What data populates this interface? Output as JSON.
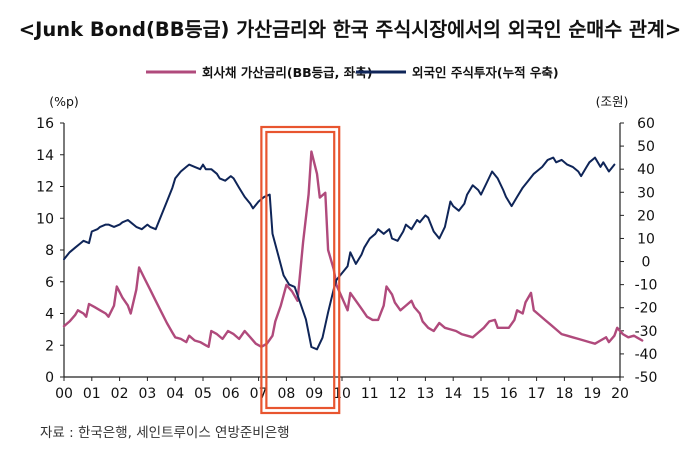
{
  "chart_data": {
    "type": "line",
    "title": "<Junk Bond(BB등급) 가산금리와 한국 주식시장에서의 외국인 순매수 관계>",
    "source": "자료 : 한국은행, 세인트루이스 연방준비은행",
    "left_axis": {
      "unit_label": "(%p)",
      "range": [
        0,
        16
      ],
      "ticks": [
        "0",
        "2",
        "4",
        "6",
        "8",
        "10",
        "12",
        "14",
        "16"
      ]
    },
    "right_axis": {
      "unit_label": "(조원)",
      "range": [
        -50,
        60
      ],
      "ticks": [
        "-50",
        "-40",
        "-30",
        "-20",
        "-10",
        "0",
        "10",
        "20",
        "30",
        "40",
        "50",
        "60"
      ]
    },
    "x_axis": {
      "range": [
        0,
        20
      ],
      "ticks": [
        "00",
        "01",
        "02",
        "03",
        "04",
        "05",
        "06",
        "07",
        "08",
        "09",
        "10",
        "11",
        "12",
        "13",
        "14",
        "15",
        "16",
        "17",
        "18",
        "19",
        "20"
      ]
    },
    "grid": false,
    "legend_position": "top-center",
    "highlight_box": {
      "x_range": [
        7.1,
        9.9
      ],
      "color": "#e8552f"
    },
    "series": [
      {
        "name": "회사채 가산금리(BB등급, 좌축)",
        "axis": "left",
        "color": "#b04a7c",
        "points": [
          [
            0.0,
            3.2
          ],
          [
            0.2,
            3.5
          ],
          [
            0.4,
            3.9
          ],
          [
            0.5,
            4.2
          ],
          [
            0.7,
            4.0
          ],
          [
            0.8,
            3.8
          ],
          [
            0.9,
            4.6
          ],
          [
            1.1,
            4.4
          ],
          [
            1.3,
            4.2
          ],
          [
            1.5,
            4.0
          ],
          [
            1.6,
            3.8
          ],
          [
            1.8,
            4.5
          ],
          [
            1.9,
            5.7
          ],
          [
            2.1,
            5.0
          ],
          [
            2.3,
            4.5
          ],
          [
            2.4,
            4.0
          ],
          [
            2.6,
            5.5
          ],
          [
            2.7,
            6.9
          ],
          [
            2.9,
            6.2
          ],
          [
            3.1,
            5.5
          ],
          [
            3.3,
            4.8
          ],
          [
            3.5,
            4.1
          ],
          [
            3.7,
            3.4
          ],
          [
            3.9,
            2.8
          ],
          [
            4.0,
            2.5
          ],
          [
            4.2,
            2.4
          ],
          [
            4.4,
            2.2
          ],
          [
            4.5,
            2.6
          ],
          [
            4.7,
            2.3
          ],
          [
            4.9,
            2.2
          ],
          [
            5.1,
            2.0
          ],
          [
            5.2,
            1.9
          ],
          [
            5.3,
            2.9
          ],
          [
            5.5,
            2.7
          ],
          [
            5.7,
            2.4
          ],
          [
            5.9,
            2.9
          ],
          [
            6.1,
            2.7
          ],
          [
            6.3,
            2.4
          ],
          [
            6.5,
            2.9
          ],
          [
            6.7,
            2.5
          ],
          [
            6.9,
            2.1
          ],
          [
            7.1,
            1.9
          ],
          [
            7.3,
            2.1
          ],
          [
            7.5,
            2.6
          ],
          [
            7.6,
            3.5
          ],
          [
            7.8,
            4.5
          ],
          [
            8.0,
            5.8
          ],
          [
            8.2,
            5.4
          ],
          [
            8.4,
            4.8
          ],
          [
            8.6,
            8.5
          ],
          [
            8.8,
            11.5
          ],
          [
            8.9,
            14.2
          ],
          [
            9.1,
            12.8
          ],
          [
            9.2,
            11.3
          ],
          [
            9.4,
            11.6
          ],
          [
            9.5,
            8.0
          ],
          [
            9.7,
            6.8
          ],
          [
            9.8,
            5.8
          ],
          [
            10.0,
            5.0
          ],
          [
            10.2,
            4.2
          ],
          [
            10.3,
            5.3
          ],
          [
            10.5,
            4.8
          ],
          [
            10.7,
            4.3
          ],
          [
            10.9,
            3.8
          ],
          [
            11.1,
            3.6
          ],
          [
            11.3,
            3.6
          ],
          [
            11.5,
            4.5
          ],
          [
            11.6,
            5.7
          ],
          [
            11.8,
            5.2
          ],
          [
            11.9,
            4.7
          ],
          [
            12.1,
            4.2
          ],
          [
            12.3,
            4.5
          ],
          [
            12.5,
            4.8
          ],
          [
            12.6,
            4.4
          ],
          [
            12.8,
            4.0
          ],
          [
            12.9,
            3.5
          ],
          [
            13.1,
            3.1
          ],
          [
            13.3,
            2.9
          ],
          [
            13.5,
            3.4
          ],
          [
            13.7,
            3.1
          ],
          [
            13.9,
            3.0
          ],
          [
            14.1,
            2.9
          ],
          [
            14.3,
            2.7
          ],
          [
            14.5,
            2.6
          ],
          [
            14.7,
            2.5
          ],
          [
            14.9,
            2.8
          ],
          [
            15.1,
            3.1
          ],
          [
            15.3,
            3.5
          ],
          [
            15.5,
            3.6
          ],
          [
            15.6,
            3.1
          ],
          [
            15.8,
            3.1
          ],
          [
            16.0,
            3.1
          ],
          [
            16.2,
            3.6
          ],
          [
            16.3,
            4.2
          ],
          [
            16.5,
            4.0
          ],
          [
            16.6,
            4.7
          ],
          [
            16.8,
            5.3
          ],
          [
            16.9,
            4.2
          ],
          [
            17.1,
            3.9
          ],
          [
            17.3,
            3.6
          ],
          [
            17.5,
            3.3
          ],
          [
            17.7,
            3.0
          ],
          [
            17.9,
            2.7
          ],
          [
            18.1,
            2.6
          ],
          [
            18.3,
            2.5
          ],
          [
            18.5,
            2.4
          ],
          [
            18.7,
            2.3
          ],
          [
            18.9,
            2.2
          ],
          [
            19.1,
            2.1
          ],
          [
            19.3,
            2.3
          ],
          [
            19.5,
            2.5
          ],
          [
            19.6,
            2.2
          ],
          [
            19.8,
            2.6
          ],
          [
            19.9,
            3.1
          ],
          [
            20.1,
            2.7
          ],
          [
            20.3,
            2.5
          ],
          [
            20.5,
            2.6
          ],
          [
            20.7,
            2.4
          ],
          [
            20.8,
            2.3
          ]
        ]
      },
      {
        "name": "외국인 주식투자(누적 우축)",
        "axis": "right",
        "color": "#0f2558",
        "points": [
          [
            0.0,
            1.0
          ],
          [
            0.2,
            4.0
          ],
          [
            0.4,
            6.0
          ],
          [
            0.6,
            8.0
          ],
          [
            0.7,
            9.0
          ],
          [
            0.9,
            8.0
          ],
          [
            1.0,
            13.0
          ],
          [
            1.2,
            14.0
          ],
          [
            1.3,
            15.0
          ],
          [
            1.5,
            16.0
          ],
          [
            1.6,
            16.0
          ],
          [
            1.8,
            15.0
          ],
          [
            2.0,
            16.0
          ],
          [
            2.1,
            17.0
          ],
          [
            2.3,
            18.0
          ],
          [
            2.4,
            17.0
          ],
          [
            2.6,
            15.0
          ],
          [
            2.8,
            14.0
          ],
          [
            3.0,
            16.0
          ],
          [
            3.1,
            15.0
          ],
          [
            3.3,
            14.0
          ],
          [
            3.5,
            20.0
          ],
          [
            3.7,
            26.0
          ],
          [
            3.9,
            32.0
          ],
          [
            4.0,
            36.0
          ],
          [
            4.2,
            39.0
          ],
          [
            4.4,
            41.0
          ],
          [
            4.5,
            42.0
          ],
          [
            4.7,
            41.0
          ],
          [
            4.9,
            40.0
          ],
          [
            5.0,
            42.0
          ],
          [
            5.1,
            40.0
          ],
          [
            5.3,
            40.0
          ],
          [
            5.5,
            38.0
          ],
          [
            5.6,
            36.0
          ],
          [
            5.8,
            35.0
          ],
          [
            6.0,
            37.0
          ],
          [
            6.1,
            36.0
          ],
          [
            6.3,
            32.0
          ],
          [
            6.5,
            28.0
          ],
          [
            6.7,
            25.0
          ],
          [
            6.8,
            23.0
          ],
          [
            7.0,
            26.0
          ],
          [
            7.2,
            28.0
          ],
          [
            7.4,
            29.0
          ],
          [
            7.5,
            12.0
          ],
          [
            7.7,
            3.0
          ],
          [
            7.9,
            -6.0
          ],
          [
            8.1,
            -10.0
          ],
          [
            8.3,
            -11.0
          ],
          [
            8.5,
            -18.0
          ],
          [
            8.7,
            -25.0
          ],
          [
            8.9,
            -37.0
          ],
          [
            9.1,
            -38.0
          ],
          [
            9.3,
            -33.0
          ],
          [
            9.5,
            -22.0
          ],
          [
            9.7,
            -12.0
          ],
          [
            9.8,
            -8.0
          ],
          [
            10.0,
            -5.0
          ],
          [
            10.2,
            -2.0
          ],
          [
            10.3,
            4.0
          ],
          [
            10.5,
            -1.0
          ],
          [
            10.7,
            3.0
          ],
          [
            10.8,
            6.0
          ],
          [
            11.0,
            10.0
          ],
          [
            11.2,
            12.0
          ],
          [
            11.3,
            14.0
          ],
          [
            11.5,
            12.0
          ],
          [
            11.7,
            14.0
          ],
          [
            11.8,
            10.0
          ],
          [
            12.0,
            9.0
          ],
          [
            12.2,
            13.0
          ],
          [
            12.3,
            16.0
          ],
          [
            12.5,
            14.0
          ],
          [
            12.7,
            18.0
          ],
          [
            12.8,
            17.0
          ],
          [
            13.0,
            20.0
          ],
          [
            13.1,
            19.0
          ],
          [
            13.3,
            13.0
          ],
          [
            13.5,
            10.0
          ],
          [
            13.7,
            15.0
          ],
          [
            13.9,
            26.0
          ],
          [
            14.0,
            24.0
          ],
          [
            14.2,
            22.0
          ],
          [
            14.4,
            25.0
          ],
          [
            14.5,
            29.0
          ],
          [
            14.7,
            33.0
          ],
          [
            14.9,
            31.0
          ],
          [
            15.0,
            29.0
          ],
          [
            15.2,
            34.0
          ],
          [
            15.4,
            39.0
          ],
          [
            15.6,
            36.0
          ],
          [
            15.8,
            31.0
          ],
          [
            15.9,
            28.0
          ],
          [
            16.1,
            24.0
          ],
          [
            16.3,
            28.0
          ],
          [
            16.5,
            32.0
          ],
          [
            16.7,
            35.0
          ],
          [
            16.9,
            38.0
          ],
          [
            17.0,
            39.0
          ],
          [
            17.2,
            41.0
          ],
          [
            17.4,
            44.0
          ],
          [
            17.6,
            45.0
          ],
          [
            17.7,
            43.0
          ],
          [
            17.9,
            44.0
          ],
          [
            18.1,
            42.0
          ],
          [
            18.3,
            41.0
          ],
          [
            18.5,
            39.0
          ],
          [
            18.6,
            37.0
          ],
          [
            18.8,
            41.0
          ],
          [
            18.9,
            43.0
          ],
          [
            19.1,
            45.0
          ],
          [
            19.3,
            41.0
          ],
          [
            19.4,
            43.0
          ],
          [
            19.6,
            39.0
          ],
          [
            19.8,
            42.0
          ]
        ]
      }
    ]
  }
}
